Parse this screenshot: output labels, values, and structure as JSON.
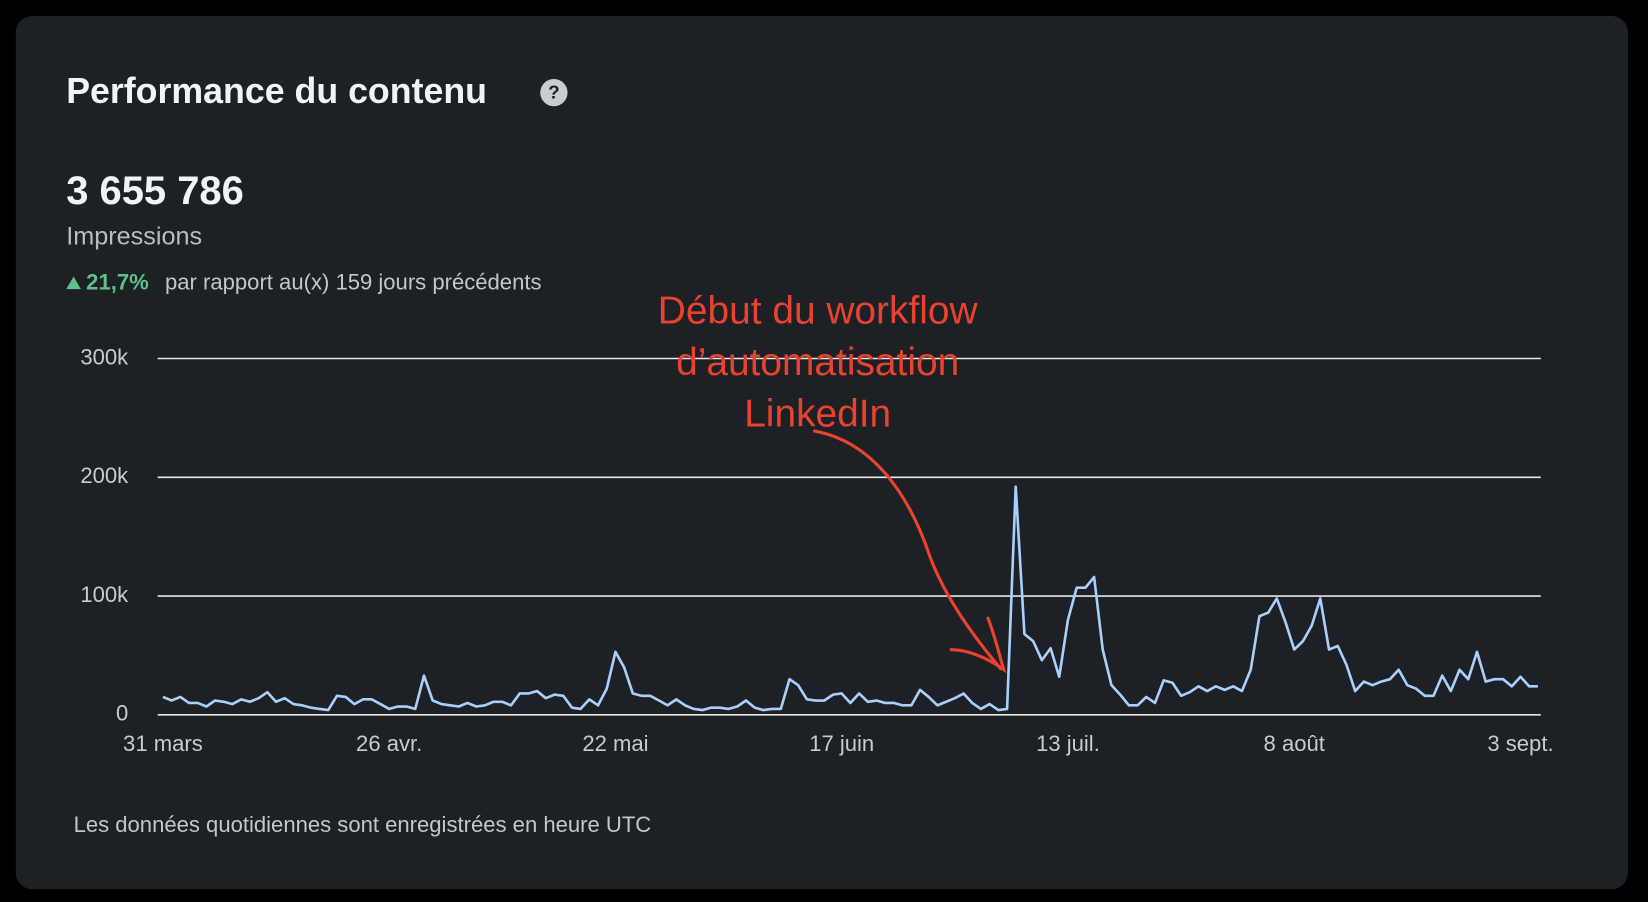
{
  "header": {
    "title": "Performance du contenu",
    "total": "3 655 786",
    "metric": "Impressions",
    "change": "21,7%",
    "comparison": "par rapport au(x) 159 jours précédents"
  },
  "footer": "Les données quotidiennes sont enregistrées en heure UTC",
  "chart_data": {
    "type": "line",
    "color": "#a9d0fb",
    "grid": true,
    "annotation": [
      "Début du workflow",
      "d’automatisation",
      "LinkedIn"
    ],
    "ylim": [
      0,
      300000
    ],
    "yticks": [
      0,
      {
        "value": 100000,
        "label": "100k"
      },
      {
        "value": 200000,
        "label": "200k"
      },
      {
        "value": 300000,
        "label": "300k"
      }
    ],
    "categories": [
      "31 mars",
      null,
      null,
      null,
      null,
      null,
      null,
      null,
      null,
      null,
      null,
      null,
      null,
      null,
      null,
      null,
      null,
      null,
      null,
      null,
      null,
      null,
      null,
      null,
      null,
      null,
      "26 avr.",
      null,
      null,
      null,
      null,
      null,
      null,
      null,
      null,
      null,
      null,
      null,
      null,
      null,
      null,
      null,
      null,
      null,
      null,
      null,
      null,
      null,
      null,
      null,
      null,
      null,
      "22 mai",
      null,
      null,
      null,
      null,
      null,
      null,
      null,
      null,
      null,
      null,
      null,
      null,
      null,
      null,
      null,
      null,
      null,
      null,
      null,
      null,
      null,
      null,
      null,
      null,
      null,
      "17 juin",
      null,
      null,
      null,
      null,
      null,
      null,
      null,
      null,
      null,
      null,
      null,
      null,
      null,
      null,
      null,
      null,
      null,
      null,
      null,
      null,
      null,
      null,
      null,
      null,
      null,
      "13 juil.",
      null,
      null,
      null,
      null,
      null,
      null,
      null,
      null,
      null,
      null,
      null,
      null,
      null,
      null,
      null,
      null,
      null,
      null,
      null,
      null,
      null,
      null,
      null,
      null,
      null,
      "8 août",
      null,
      null,
      null,
      null,
      null,
      null,
      null,
      null,
      null,
      null,
      null,
      null,
      null,
      null,
      null,
      null,
      null,
      null,
      null,
      null,
      null,
      null,
      null,
      null,
      null,
      "3 sept.",
      null,
      null
    ],
    "values": [
      15000,
      12000,
      15000,
      10000,
      10000,
      7000,
      12000,
      11000,
      9000,
      13000,
      11000,
      14000,
      19000,
      11000,
      14000,
      9000,
      8000,
      6000,
      5000,
      4000,
      16000,
      15000,
      9000,
      13000,
      13000,
      9000,
      5000,
      7000,
      7000,
      5000,
      33000,
      12000,
      9000,
      8000,
      7000,
      10000,
      7000,
      8000,
      11000,
      11000,
      8000,
      18000,
      18000,
      20000,
      14000,
      17000,
      16000,
      6000,
      5000,
      13000,
      8000,
      22000,
      53000,
      40000,
      18000,
      16000,
      16000,
      12000,
      8000,
      13000,
      8000,
      5000,
      4000,
      6000,
      6000,
      5000,
      7000,
      12000,
      6000,
      4000,
      5000,
      5000,
      30000,
      25000,
      13000,
      12000,
      12000,
      17000,
      18000,
      10000,
      18000,
      11000,
      12000,
      10000,
      10000,
      8000,
      8000,
      21000,
      15000,
      8000,
      11000,
      14000,
      18000,
      10000,
      5000,
      9000,
      4000,
      5000,
      192000,
      68000,
      62000,
      46000,
      56000,
      32000,
      80000,
      107000,
      107000,
      116000,
      55000,
      25000,
      17000,
      8000,
      8000,
      15000,
      10000,
      29000,
      27000,
      16000,
      19000,
      24000,
      20000,
      24000,
      21000,
      24000,
      20000,
      38000,
      83000,
      86000,
      98000,
      78000,
      55000,
      62000,
      75000,
      98000,
      55000,
      58000,
      42000,
      20000,
      28000,
      25000,
      28000,
      30000,
      38000,
      25000,
      22000,
      16000,
      16000,
      33000,
      20000,
      38000,
      30000,
      53000,
      28000,
      30000,
      30000,
      24000,
      32000,
      24000,
      24000
    ]
  }
}
